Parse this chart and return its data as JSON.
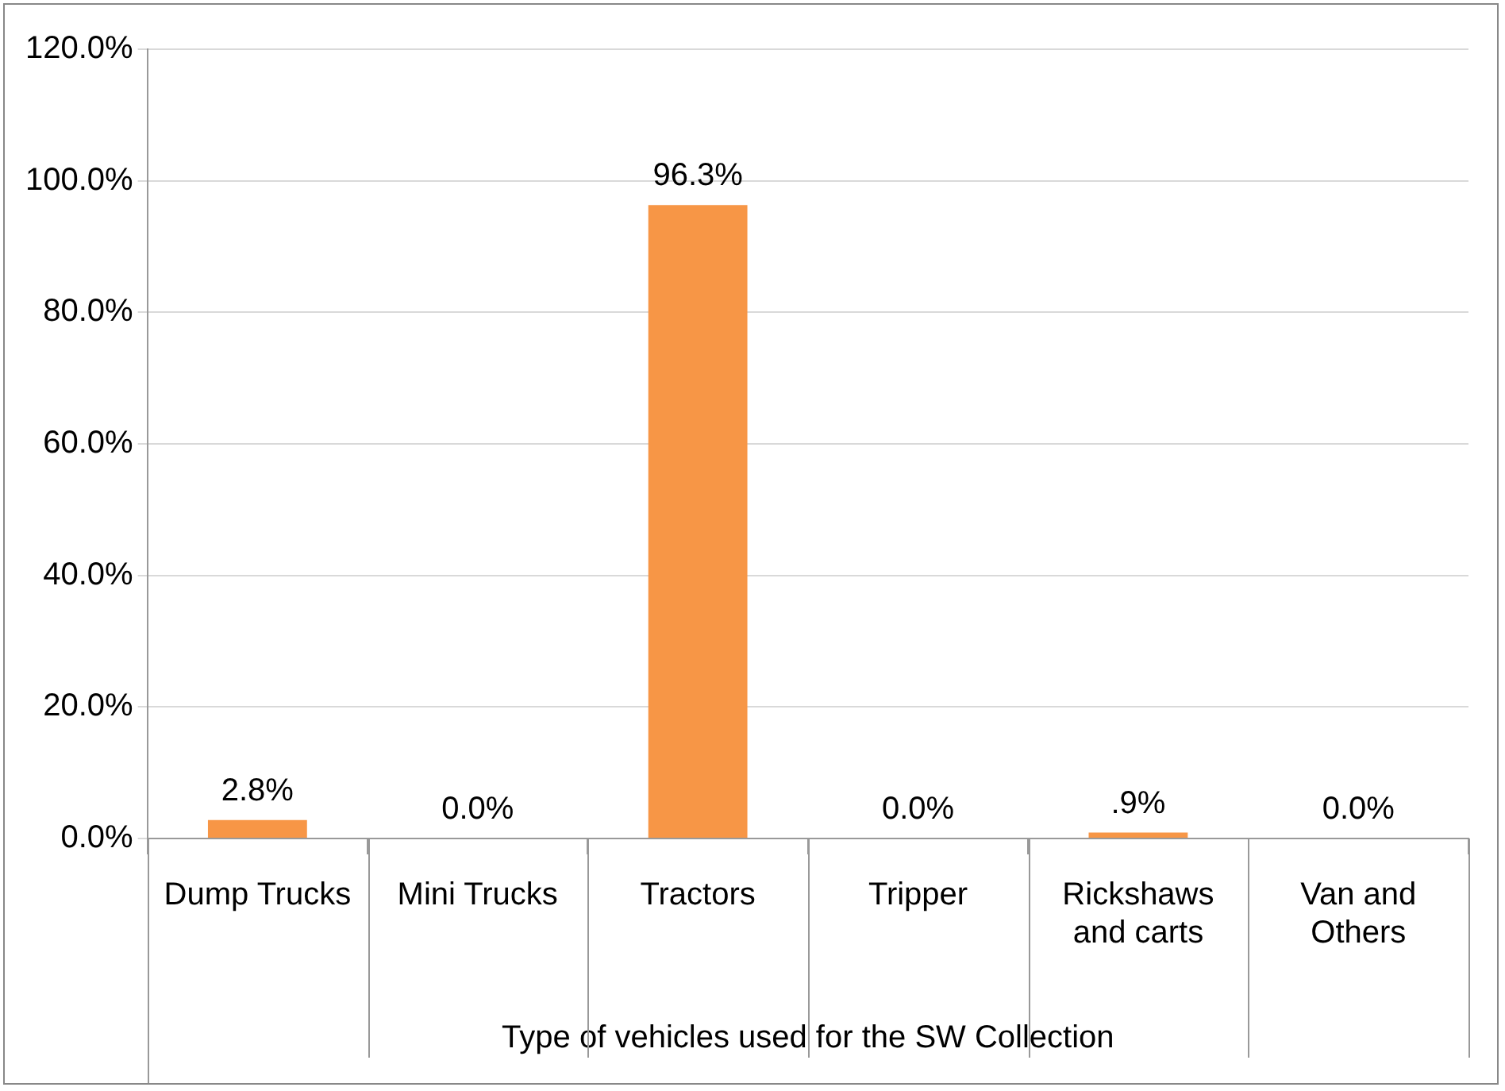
{
  "chart_data": {
    "type": "bar",
    "xlabel": "Type of vehicles used for the SW Collection",
    "categories": [
      "Dump Trucks",
      "Mini Trucks",
      "Tractors",
      "Tripper",
      "Rickshaws and carts",
      "Van and Others"
    ],
    "values": [
      2.8,
      0,
      96.3,
      0,
      0.9,
      0
    ],
    "value_labels": [
      "2.8%",
      "0.0%",
      "96.3%",
      "0.0%",
      ".9%",
      "0.0%"
    ],
    "color": "#f79646",
    "ylim": [
      0,
      120
    ],
    "yticks": [
      {
        "value": 0,
        "label": "0.0%"
      },
      {
        "value": 20,
        "label": "20.0%"
      },
      {
        "value": 40,
        "label": "40.0%"
      },
      {
        "value": 60,
        "label": "60.0%"
      },
      {
        "value": 80,
        "label": "80.0%"
      },
      {
        "value": 100,
        "label": "100.0%"
      },
      {
        "value": 120,
        "label": "120.0%"
      }
    ],
    "grid": "y",
    "legend": false
  }
}
